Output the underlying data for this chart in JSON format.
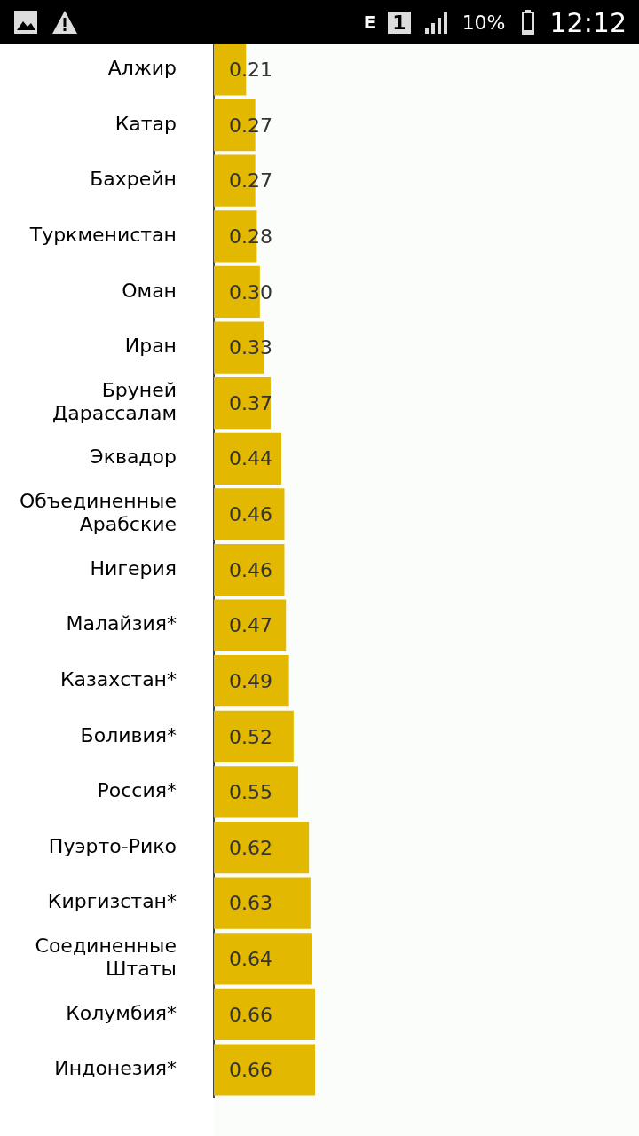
{
  "chart_data": {
    "type": "bar",
    "orientation": "horizontal",
    "categories": [
      "Алжир",
      "Катар",
      "Бахрейн",
      "Туркменистан",
      "Оман",
      "Иран",
      "Бруней Дарассалам",
      "Эквадор",
      "Объединенные Арабские",
      "Нигерия",
      "Малайзия*",
      "Казахстан*",
      "Боливия*",
      "Россия*",
      "Пуэрто-Рико",
      "Киргизстан*",
      "Соединенные Штаты",
      "Колумбия*",
      "Индонезия*"
    ],
    "values": [
      0.21,
      0.27,
      0.27,
      0.28,
      0.3,
      0.33,
      0.37,
      0.44,
      0.46,
      0.46,
      0.47,
      0.49,
      0.52,
      0.55,
      0.62,
      0.63,
      0.64,
      0.66,
      0.66
    ],
    "value_labels": [
      "0.21",
      "0.27",
      "0.27",
      "0.28",
      "0.30",
      "0.33",
      "0.37",
      "0.44",
      "0.46",
      "0.46",
      "0.47",
      "0.49",
      "0.52",
      "0.55",
      "0.62",
      "0.63",
      "0.64",
      "0.66",
      "0.66"
    ],
    "color": "#e3b800",
    "grid": false,
    "annotations": [
      "E",
      "1",
      "10%",
      "12:12"
    ]
  }
}
